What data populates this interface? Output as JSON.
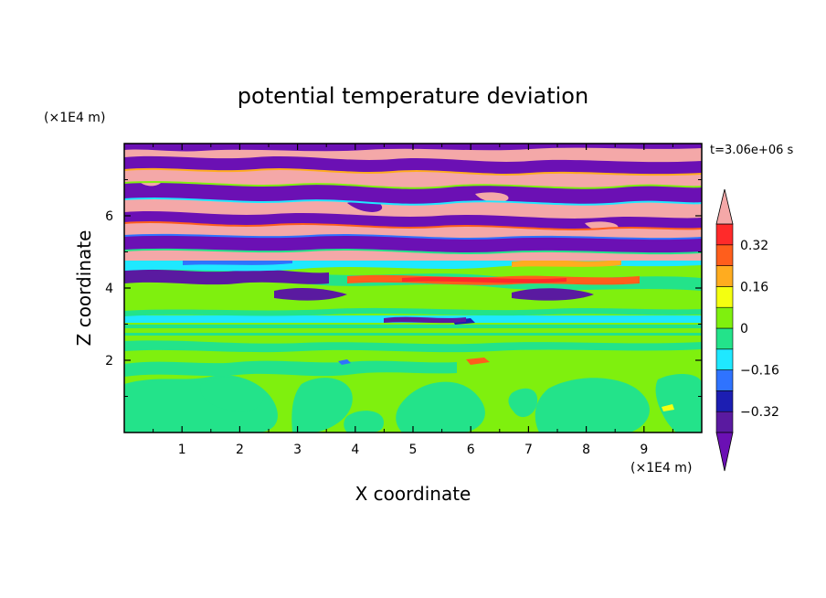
{
  "chart_data": {
    "type": "heatmap",
    "title": "potential temperature deviation",
    "xlabel": "X coordinate",
    "ylabel": "Z coordinate",
    "x_unit": "(×1E4 m)",
    "y_unit": "(×1E4 m)",
    "time_label": "t=3.06e+06 s",
    "xlim": [
      0,
      10
    ],
    "ylim": [
      0,
      8
    ],
    "x_ticks": [
      "1",
      "2",
      "3",
      "4",
      "5",
      "6",
      "7",
      "8",
      "9"
    ],
    "y_ticks": [
      "2",
      "4",
      "6"
    ],
    "colorbar": {
      "levels": [
        -0.4,
        -0.32,
        -0.24,
        -0.16,
        -0.08,
        0,
        0.08,
        0.16,
        0.24,
        0.32,
        0.4
      ],
      "labels": [
        "0.32",
        "0.16",
        "0",
        "−0.16",
        "−0.32"
      ],
      "label_values": [
        0.32,
        0.16,
        0,
        -0.16,
        -0.32
      ],
      "colors_bottom_to_top": [
        "#5a1aa0",
        "#1c1eb2",
        "#2f73ff",
        "#1fe8ff",
        "#23e38a",
        "#7ff00e",
        "#f4ff10",
        "#ffac1f",
        "#ff5e1c",
        "#ff2a2a"
      ],
      "under_color": "#6b10b4",
      "over_color": "#f4a8a8"
    },
    "field_description": "Lower region (z<4) mostly 0 to 0.08 with -0.08 patches; z 4-8 alternating bands of >0.4 and <-0.4 with sharp transitions."
  }
}
